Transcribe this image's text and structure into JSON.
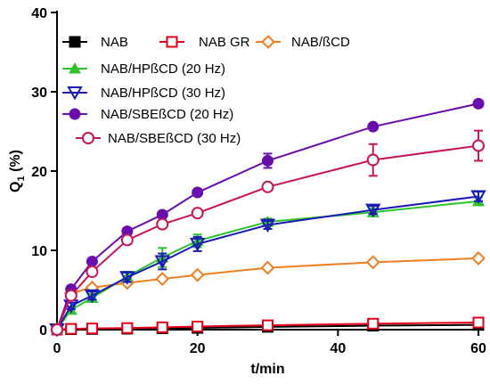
{
  "chart_data": {
    "type": "line",
    "xlabel": "t/min",
    "ylabel_main": "Q",
    "ylabel_sub": "1",
    "ylabel_suffix": " (%)",
    "xlim": [
      0,
      60
    ],
    "ylim": [
      0,
      40
    ],
    "xticks": [
      0,
      20,
      40,
      60
    ],
    "yticks": [
      0,
      10,
      20,
      30,
      40
    ],
    "grid": false,
    "legend_position": "top-left",
    "x": [
      0,
      2,
      5,
      10,
      15,
      20,
      30,
      45,
      60
    ],
    "series": [
      {
        "name": "NAB",
        "color": "#000000",
        "marker": "filled-square",
        "values": [
          0,
          0.05,
          0.08,
          0.12,
          0.18,
          0.22,
          0.35,
          0.5,
          0.6
        ],
        "errors": [
          0,
          0,
          0,
          0,
          0,
          0,
          0,
          0,
          0
        ]
      },
      {
        "name": "NAB GR",
        "color": "#e3001b",
        "marker": "open-square",
        "values": [
          0,
          0.1,
          0.15,
          0.2,
          0.3,
          0.4,
          0.55,
          0.75,
          0.9
        ],
        "errors": [
          0,
          0,
          0,
          0,
          0,
          0,
          0,
          0,
          0
        ]
      },
      {
        "name": "NAB/ßCD",
        "color": "#f07d1e",
        "marker": "open-diamond",
        "values": [
          0,
          4.6,
          5.3,
          5.9,
          6.4,
          6.9,
          7.8,
          8.5,
          9.0
        ],
        "errors": [
          0,
          0,
          0,
          0,
          0,
          0,
          0,
          0,
          0
        ]
      },
      {
        "name": "NAB/HPßCD (20 Hz)",
        "color": "#2ec42e",
        "marker": "filled-triangle",
        "values": [
          0,
          2.5,
          4.0,
          6.7,
          9.1,
          11.2,
          13.6,
          14.8,
          16.2
        ],
        "errors": [
          0,
          0.4,
          0.5,
          0.6,
          1.2,
          0.8,
          0.4,
          0.5,
          0.5
        ]
      },
      {
        "name": "NAB/HPßCD (30 Hz)",
        "color": "#1a1ab4",
        "marker": "open-triangle-down",
        "values": [
          0,
          3.0,
          4.3,
          6.6,
          8.6,
          10.8,
          13.2,
          15.1,
          16.8
        ],
        "errors": [
          0,
          0.4,
          0.5,
          0.6,
          1.0,
          0.9,
          0.5,
          0.5,
          0.6
        ]
      },
      {
        "name": "NAB/SBEßCD (20 Hz)",
        "color": "#6a0dad",
        "marker": "filled-circle",
        "values": [
          0,
          5.1,
          8.6,
          12.4,
          14.5,
          17.3,
          21.3,
          25.6,
          28.5
        ],
        "errors": [
          0,
          0.3,
          0.3,
          0.4,
          0.3,
          0.3,
          0.9,
          0.3,
          0.4
        ]
      },
      {
        "name": "NAB/SBEßCD (30 Hz)",
        "color": "#c8145a",
        "marker": "open-circle",
        "values": [
          0,
          4.3,
          7.3,
          11.3,
          13.3,
          14.7,
          18.0,
          21.4,
          23.2
        ],
        "errors": [
          0,
          0.4,
          0.4,
          0.5,
          0.4,
          0.4,
          0.4,
          2.0,
          1.9
        ]
      }
    ]
  }
}
